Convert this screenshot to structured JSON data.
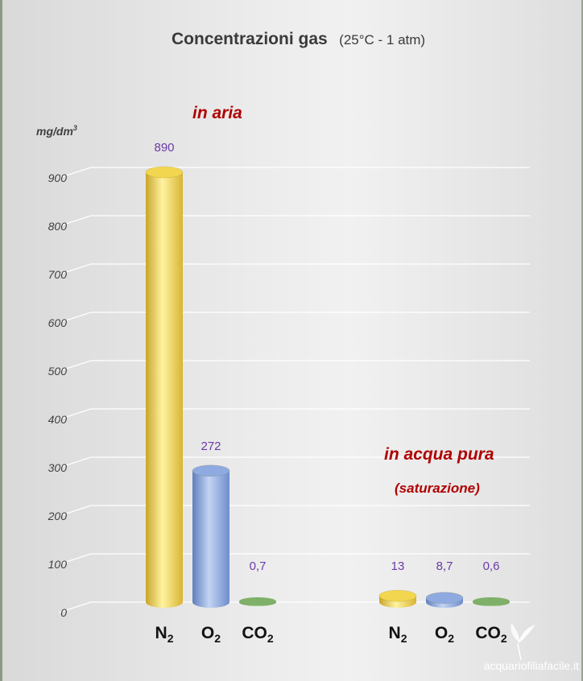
{
  "chart_data": {
    "type": "bar",
    "title": "Concentrazioni gas",
    "subtitle": "(25°C - 1 atm)",
    "ylabel": "mg/dm",
    "ylabel_superscript": "3",
    "ylim": [
      0,
      900
    ],
    "yticks": [
      "0",
      "100",
      "200",
      "300",
      "400",
      "500",
      "600",
      "700",
      "800",
      "900"
    ],
    "groups": [
      {
        "label": "in aria",
        "sublabel": "",
        "bars": [
          {
            "base": "N",
            "sub": "2",
            "value": 890,
            "value_label": "890",
            "color": "#f2d64f"
          },
          {
            "base": "O",
            "sub": "2",
            "value": 272,
            "value_label": "272",
            "color": "#8eaae0"
          },
          {
            "base": "CO",
            "sub": "2",
            "value": 0.7,
            "value_label": "0,7",
            "color": "#7fb069"
          }
        ]
      },
      {
        "label": "in acqua pura",
        "sublabel": "(saturazione)",
        "bars": [
          {
            "base": "N",
            "sub": "2",
            "value": 13,
            "value_label": "13",
            "color": "#f2d64f"
          },
          {
            "base": "O",
            "sub": "2",
            "value": 8.7,
            "value_label": "8,7",
            "color": "#8eaae0"
          },
          {
            "base": "CO",
            "sub": "2",
            "value": 0.6,
            "value_label": "0,6",
            "color": "#7fb069"
          }
        ]
      }
    ],
    "grid": true
  },
  "watermark": "acquariofiliafacile.it",
  "colors": {
    "title": "#3a3a3a",
    "group_label": "#b00000",
    "value_label": "#6b3aa8",
    "gridline": "#ffffff"
  }
}
